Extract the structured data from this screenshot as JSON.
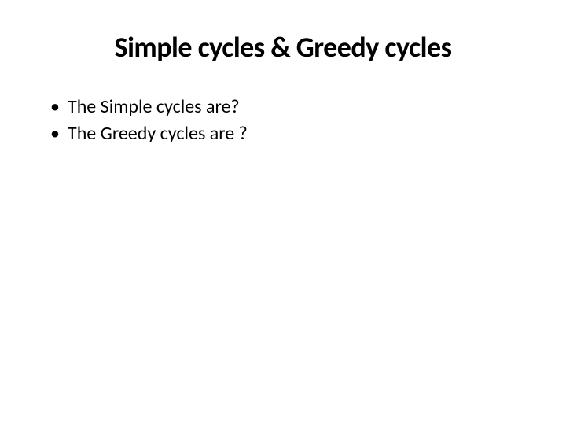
{
  "slide": {
    "title": "Simple cycles & Greedy cycles",
    "title_fontsize": 36,
    "title_color": "#000000",
    "title_fontweight": 700,
    "background_color": "#ffffff",
    "bullets": [
      {
        "text": "The Simple cycles are?"
      },
      {
        "text": "The Greedy cycles are ?"
      }
    ],
    "bullet_fontsize": 24,
    "bullet_color": "#000000"
  }
}
